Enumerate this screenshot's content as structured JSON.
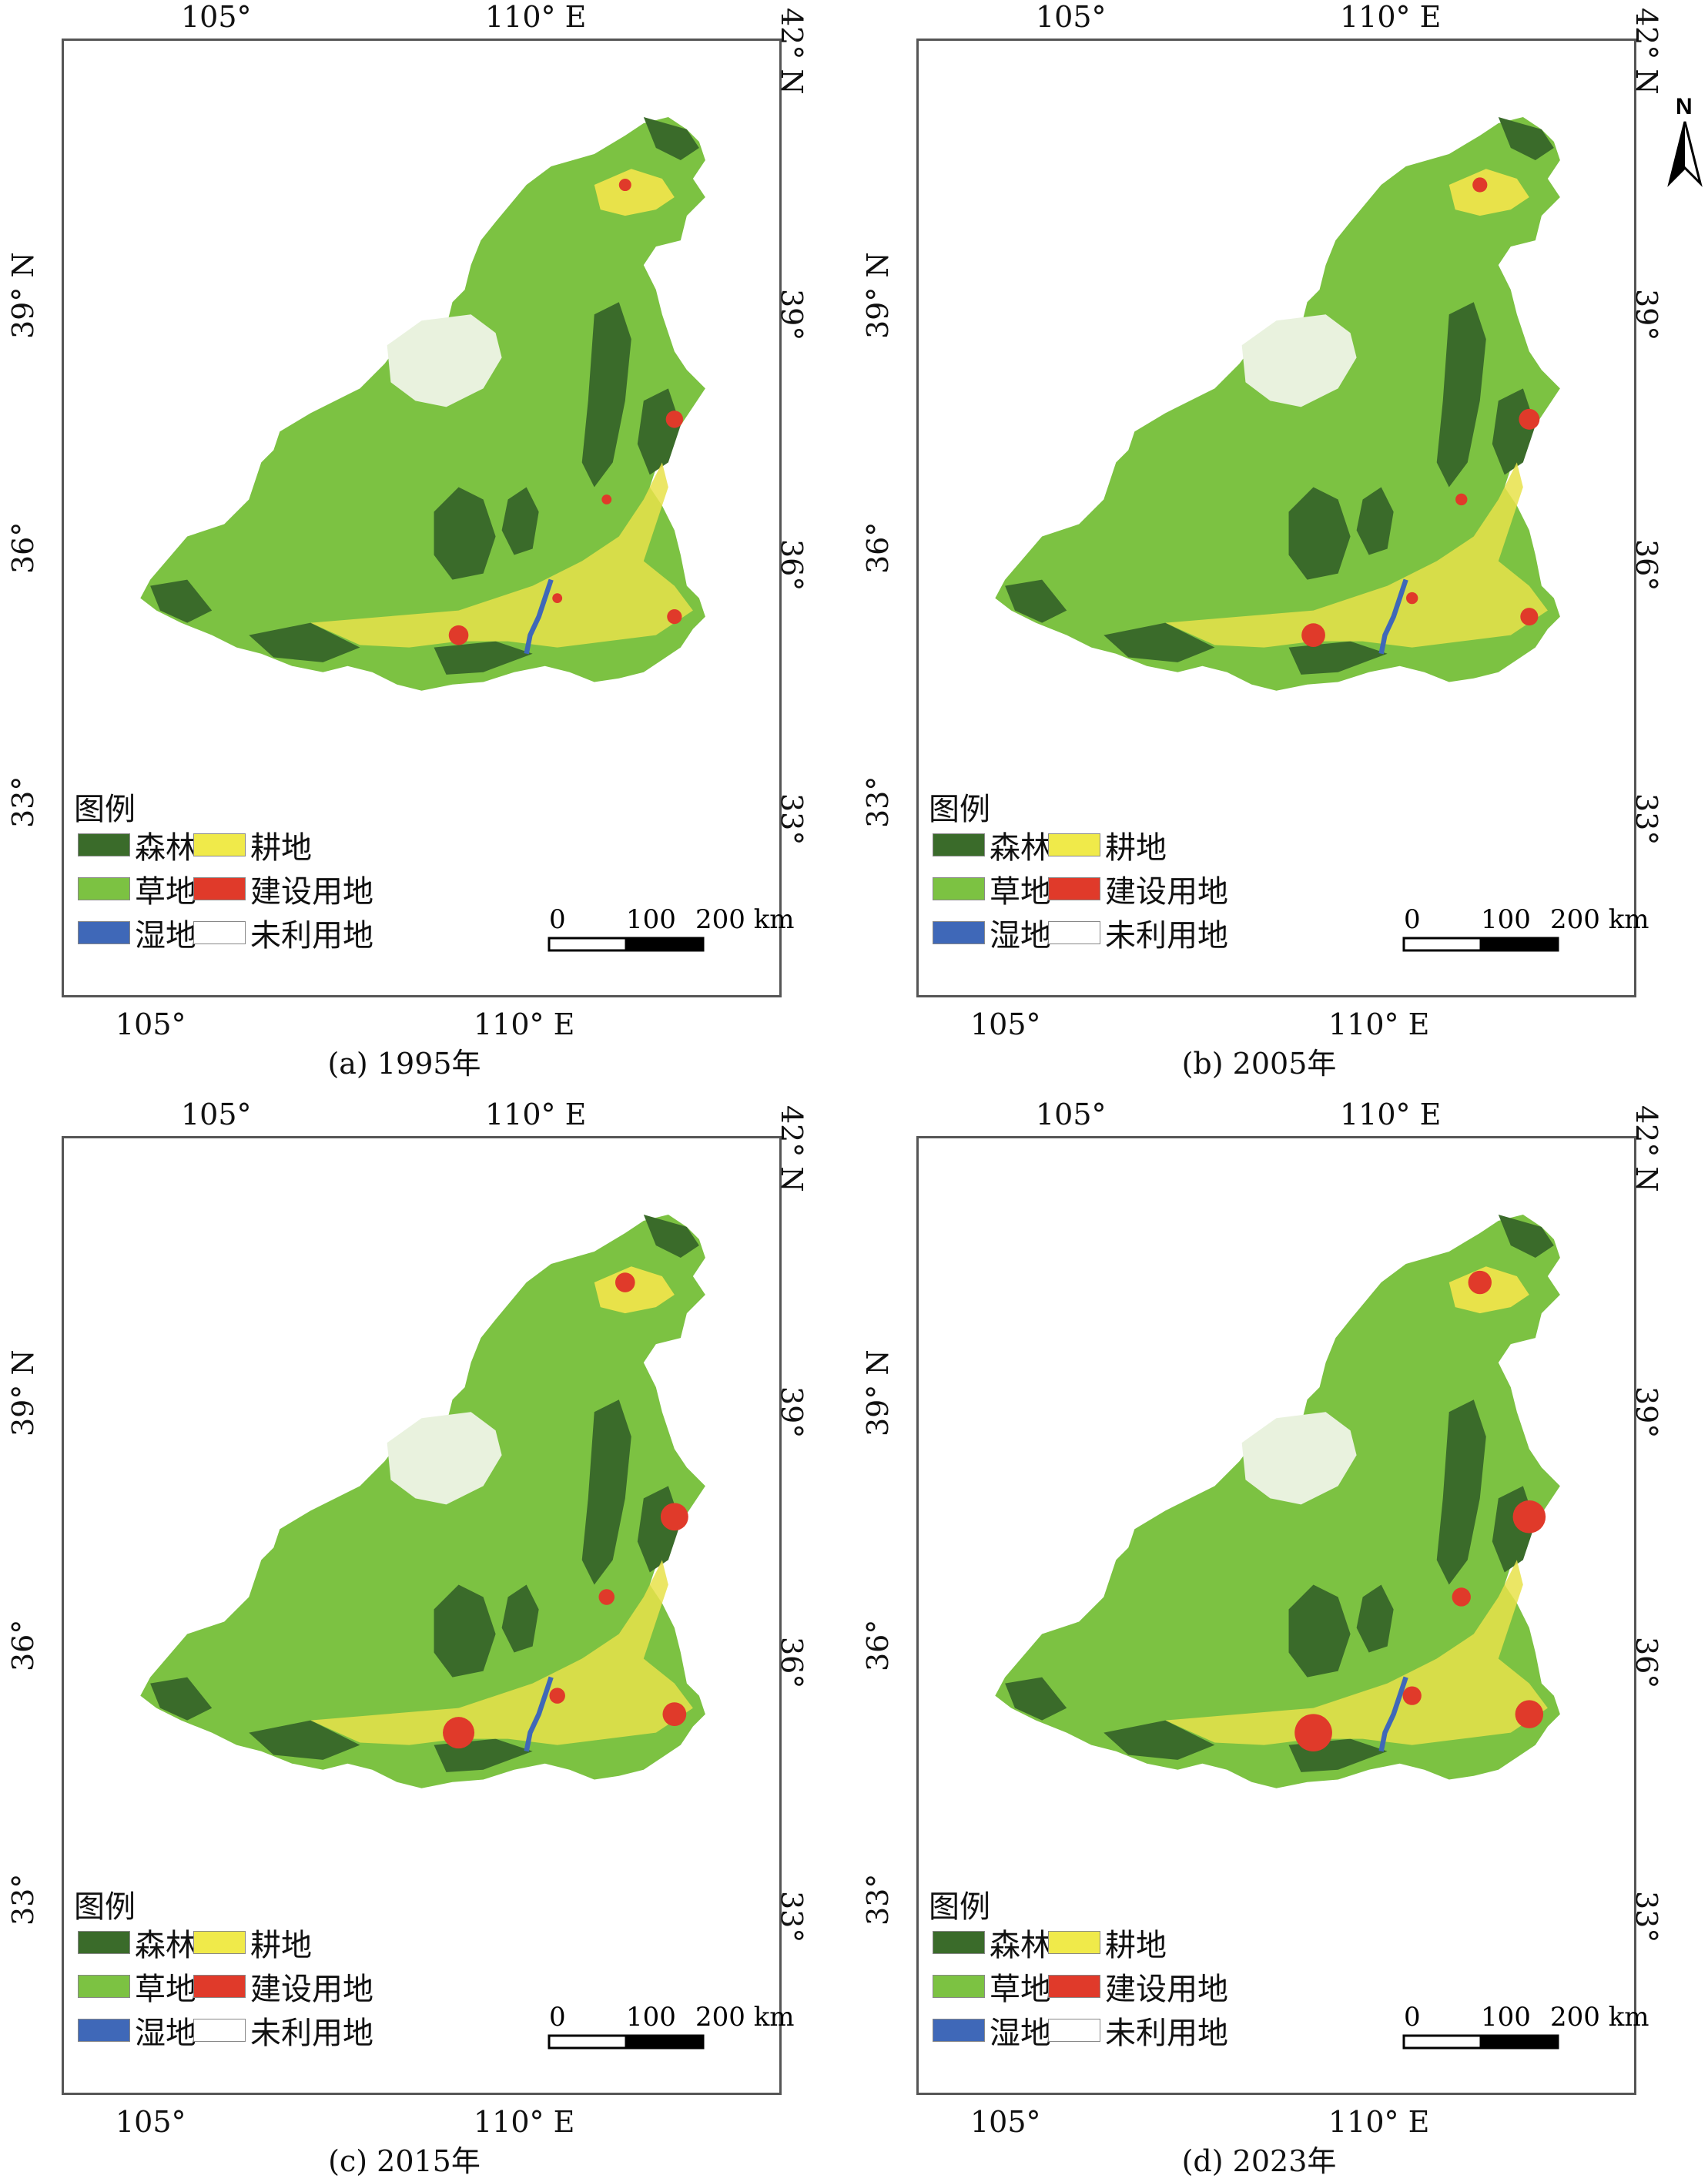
{
  "panels": [
    {
      "caption": "(a) 1995年"
    },
    {
      "caption": "(b) 2005年"
    },
    {
      "caption": "(c) 2015年"
    },
    {
      "caption": "(d) 2023年"
    }
  ],
  "axes": {
    "top_lon": [
      "105°",
      "110°  E"
    ],
    "bottom_lon": [
      "105°",
      "110°  E"
    ],
    "left_lat": [
      "39°  N",
      "36°",
      "33°"
    ],
    "right_lat": [
      "42°  N",
      "39°",
      "36°",
      "33°"
    ]
  },
  "legend": {
    "title": "图例",
    "items": [
      {
        "label": "森林",
        "color": "#3a6b2a"
      },
      {
        "label": "耕地",
        "color": "#f0ea4a"
      },
      {
        "label": "草地",
        "color": "#7cc242"
      },
      {
        "label": "建设用地",
        "color": "#e03a2a"
      },
      {
        "label": "湿地",
        "color": "#3f68b8"
      },
      {
        "label": "未利用地",
        "color": "#ffffff"
      }
    ]
  },
  "scalebar": {
    "ticks": [
      "0",
      "100",
      "200 km"
    ]
  },
  "north_arrow": {
    "label": "N"
  }
}
